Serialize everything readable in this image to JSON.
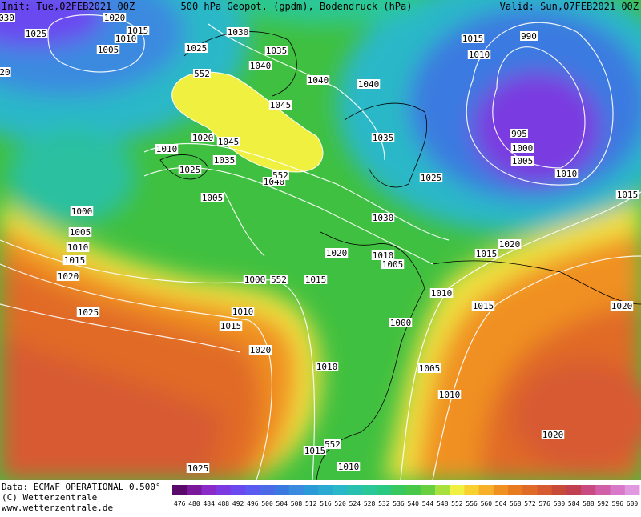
{
  "header": {
    "init": "Init: Tue,02FEB2021 00Z",
    "title": "500 hPa Geopot. (gpdm), Bodendruck (hPa)",
    "valid": "Valid: Sun,07FEB2021 00Z"
  },
  "isobar_labels": [
    "030",
    "1020",
    "1015",
    "1025",
    "1010",
    "1005",
    "1030",
    "1025",
    "1035",
    "1040",
    "1040",
    "1040",
    "1045",
    "552",
    "1015",
    "1010",
    "990",
    "995",
    "1000",
    "1005",
    "1010",
    "1010",
    "1020",
    "1045",
    "1035",
    "1025",
    "1040",
    "552",
    "1035",
    "1025",
    "1005",
    "1000",
    "1030",
    "1015",
    "1005",
    "1010",
    "1015",
    "1020",
    "1020",
    "1010",
    "1005",
    "1020",
    "1015",
    "1000",
    "552",
    "1015",
    "1010",
    "1015",
    "1020",
    "1025",
    "1010",
    "1015",
    "1000",
    "1020",
    "1010",
    "1005",
    "1010",
    "1020",
    "1015",
    "552",
    "1010",
    "1025",
    "20"
  ],
  "footer": [
    "Data: ECMWF OPERATIONAL 0.500°",
    "(C) Wetterzentrale",
    "www.wetterzentrale.de"
  ],
  "colorbar": {
    "labels": [
      476,
      480,
      484,
      488,
      492,
      496,
      500,
      504,
      508,
      512,
      516,
      520,
      524,
      528,
      532,
      536,
      540,
      544,
      548,
      552,
      556,
      560,
      564,
      568,
      572,
      576,
      580,
      584,
      588,
      592,
      596,
      600
    ],
    "colors": [
      "#5a0a6a",
      "#7a1a9a",
      "#8a2ac8",
      "#7a3ae0",
      "#6a4af0",
      "#5a5af0",
      "#4a6ae8",
      "#3a7ae0",
      "#3a8ae0",
      "#2a9ad8",
      "#2aaad0",
      "#2ab8c8",
      "#2ac0b0",
      "#2ac898",
      "#2ac880",
      "#38c860",
      "#48c848",
      "#68d040",
      "#a8e040",
      "#f0f040",
      "#f8d030",
      "#f8b028",
      "#f09020",
      "#e87a20",
      "#e06a28",
      "#d85a30",
      "#c84a38",
      "#c04050",
      "#c84a80",
      "#d060a8",
      "#d878c8",
      "#e098e0"
    ]
  }
}
